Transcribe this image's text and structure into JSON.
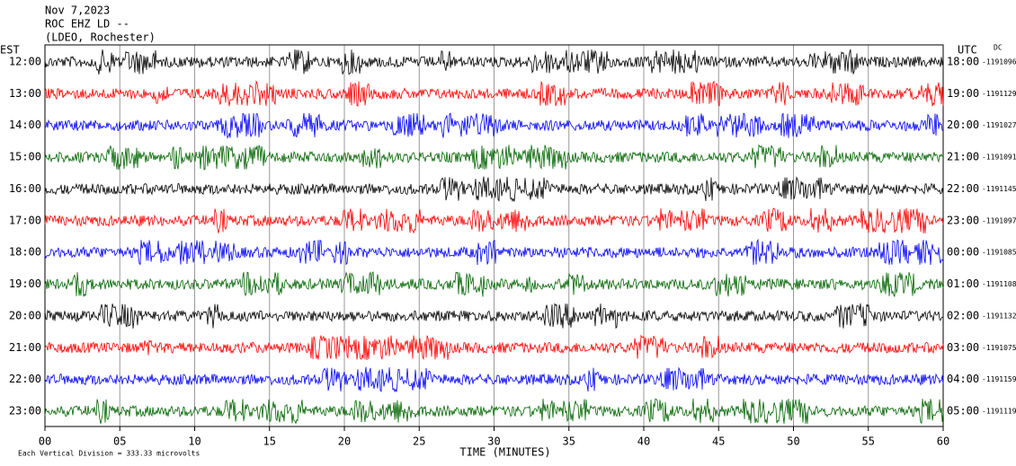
{
  "chart_data": {
    "type": "helicorder",
    "title_lines": [
      "Nov 7,2023",
      "ROC EHZ LD --",
      "(LDEO, Rochester)"
    ],
    "left_label": "EST",
    "right_label": "UTC",
    "dc_label": "DC",
    "x_label": "TIME (MINUTES)",
    "scale_note": "Each Vertical Division = 333.33 microvolts",
    "xlim": [
      0,
      60
    ],
    "xticks": [
      {
        "value": 0,
        "label": "00"
      },
      {
        "value": 5,
        "label": "05"
      },
      10,
      15,
      20,
      25,
      30,
      35,
      40,
      45,
      50,
      55,
      60
    ],
    "grid": true,
    "rows": [
      {
        "est": "12:00",
        "utc": "18:00",
        "dc": -1191096,
        "color": "#000000"
      },
      {
        "est": "13:00",
        "utc": "19:00",
        "dc": -1191129,
        "color": "#ff0000"
      },
      {
        "est": "14:00",
        "utc": "20:00",
        "dc": -1191027,
        "color": "#0000ff"
      },
      {
        "est": "15:00",
        "utc": "21:00",
        "dc": -1191091,
        "color": "#006400"
      },
      {
        "est": "16:00",
        "utc": "22:00",
        "dc": -1191145,
        "color": "#000000"
      },
      {
        "est": "17:00",
        "utc": "23:00",
        "dc": -1191097,
        "color": "#ff0000"
      },
      {
        "est": "18:00",
        "utc": "00:00",
        "dc": -1191085,
        "color": "#0000ff"
      },
      {
        "est": "19:00",
        "utc": "01:00",
        "dc": -1191108,
        "color": "#006400"
      },
      {
        "est": "20:00",
        "utc": "02:00",
        "dc": -1191132,
        "color": "#000000"
      },
      {
        "est": "21:00",
        "utc": "03:00",
        "dc": -1191075,
        "color": "#ff0000"
      },
      {
        "est": "22:00",
        "utc": "04:00",
        "dc": -1191159,
        "color": "#0000ff"
      },
      {
        "est": "23:00",
        "utc": "05:00",
        "dc": -1191119,
        "color": "#006400"
      }
    ]
  }
}
